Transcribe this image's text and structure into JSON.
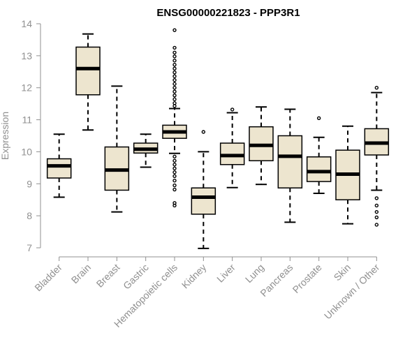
{
  "chart_data": {
    "type": "boxplot",
    "title": "ENSG00000221823 - PPP3R1",
    "xlabel": "",
    "ylabel": "Expression",
    "ylim": [
      7,
      14
    ],
    "yticks": [
      7,
      8,
      9,
      10,
      11,
      12,
      13,
      14
    ],
    "grid": false,
    "box_color": "#ede5cf",
    "axis_color": "#909090",
    "categories": [
      "Bladder",
      "Brain",
      "Breast",
      "Gastric",
      "Hematopoietic cells",
      "Kidney",
      "Liver",
      "Lung",
      "Pancreas",
      "Prostate",
      "Skin",
      "Unknown / Other"
    ],
    "boxes": [
      {
        "label": "Bladder",
        "min": 8.58,
        "q1": 9.18,
        "median": 9.56,
        "q3": 9.78,
        "max": 10.55,
        "outliers": []
      },
      {
        "label": "Brain",
        "min": 10.68,
        "q1": 11.78,
        "median": 12.6,
        "q3": 13.27,
        "max": 13.68,
        "outliers": []
      },
      {
        "label": "Breast",
        "min": 8.12,
        "q1": 8.8,
        "median": 9.43,
        "q3": 10.15,
        "max": 12.05,
        "outliers": []
      },
      {
        "label": "Gastric",
        "min": 9.52,
        "q1": 9.96,
        "median": 10.08,
        "q3": 10.27,
        "max": 10.55,
        "outliers": []
      },
      {
        "label": "Hematopoietic cells",
        "min": 9.95,
        "q1": 10.42,
        "median": 10.62,
        "q3": 10.83,
        "max": 11.35,
        "outliers": [
          13.8,
          13.25,
          13.1,
          12.98,
          12.85,
          12.72,
          12.6,
          12.48,
          12.36,
          12.24,
          12.12,
          12.0,
          11.88,
          11.76,
          11.64,
          11.52,
          11.43,
          9.85,
          9.72,
          9.6,
          9.48,
          9.36,
          9.24,
          9.1,
          8.95,
          8.82,
          8.4,
          8.32
        ]
      },
      {
        "label": "Kidney",
        "min": 6.98,
        "q1": 8.05,
        "median": 8.58,
        "q3": 8.87,
        "max": 10.0,
        "outliers": [
          10.62
        ]
      },
      {
        "label": "Liver",
        "min": 8.88,
        "q1": 9.6,
        "median": 9.88,
        "q3": 10.27,
        "max": 11.22,
        "outliers": [
          11.32
        ]
      },
      {
        "label": "Lung",
        "min": 8.98,
        "q1": 9.72,
        "median": 10.2,
        "q3": 10.78,
        "max": 11.4,
        "outliers": []
      },
      {
        "label": "Pancreas",
        "min": 7.8,
        "q1": 8.87,
        "median": 9.86,
        "q3": 10.5,
        "max": 11.33,
        "outliers": []
      },
      {
        "label": "Prostate",
        "min": 8.7,
        "q1": 9.07,
        "median": 9.38,
        "q3": 9.84,
        "max": 10.45,
        "outliers": [
          11.05
        ]
      },
      {
        "label": "Skin",
        "min": 7.75,
        "q1": 8.5,
        "median": 9.3,
        "q3": 10.05,
        "max": 10.8,
        "outliers": []
      },
      {
        "label": "Unknown / Other",
        "min": 8.8,
        "q1": 9.9,
        "median": 10.27,
        "q3": 10.72,
        "max": 11.85,
        "outliers": [
          12.0,
          8.55,
          8.32,
          8.12,
          7.95,
          7.72
        ]
      }
    ]
  }
}
